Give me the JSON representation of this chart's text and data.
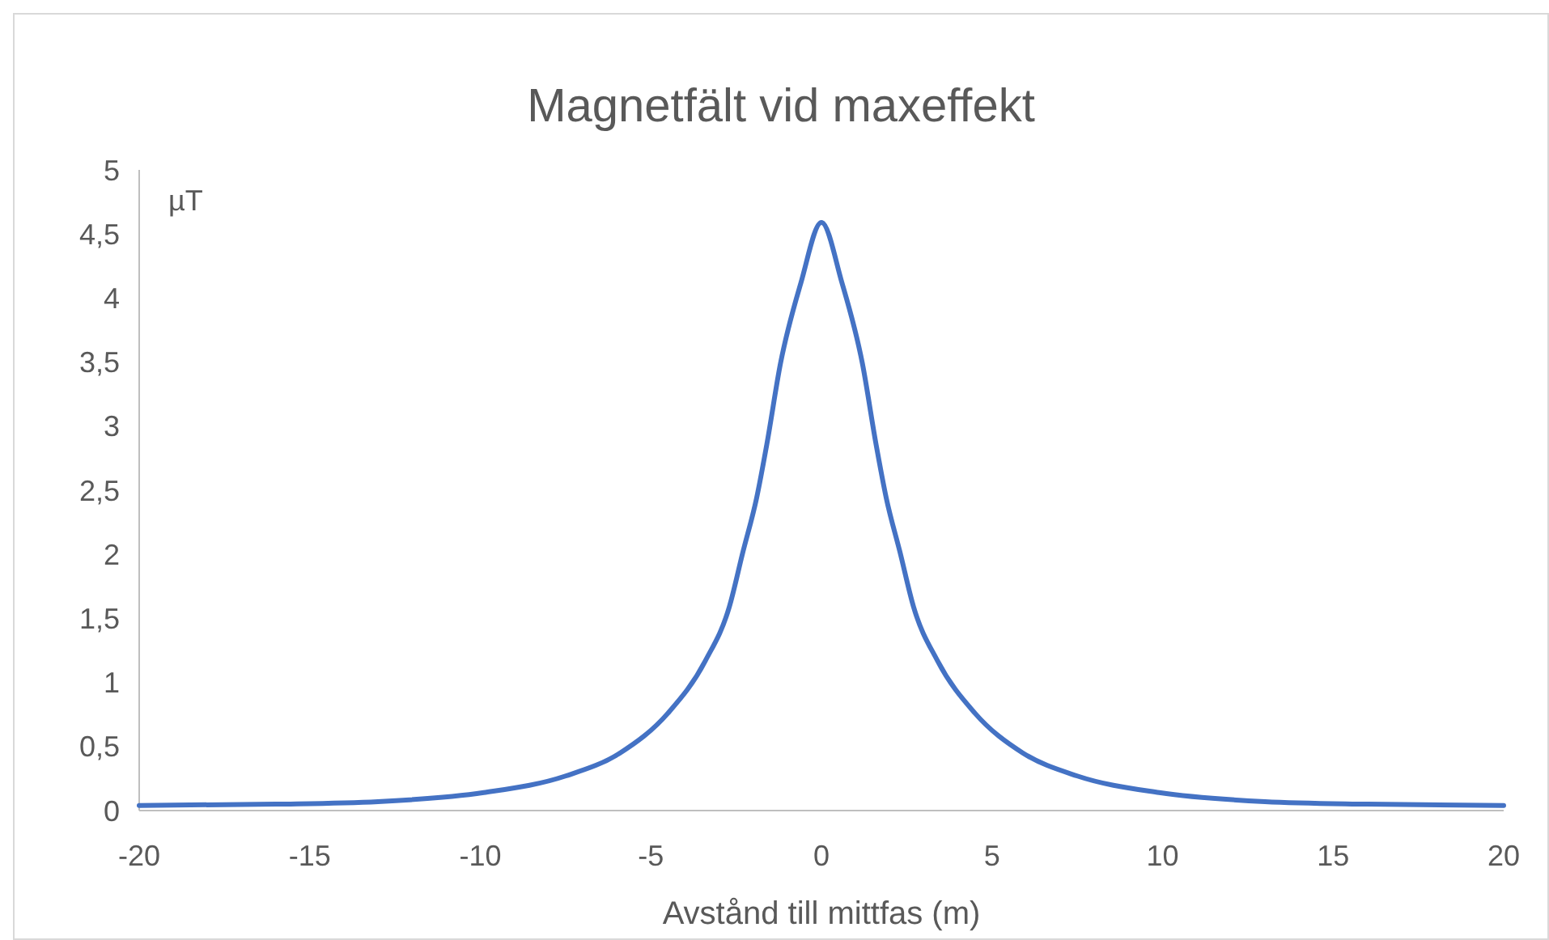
{
  "chart_data": {
    "type": "line",
    "title": "Magnetfält vid maxeffekt",
    "xlabel": "Avstånd till mittfas (m)",
    "ylabel": "µT",
    "x": [
      -20,
      -16,
      -13,
      -9.9,
      -7.5,
      -5.9,
      -4.5,
      -3.4,
      -2.7,
      -2.3,
      -1.9,
      -1.6,
      -1.2,
      -0.6,
      0,
      0.6,
      1.2,
      1.6,
      1.9,
      2.3,
      2.7,
      3.4,
      4.5,
      5.9,
      7.5,
      9.9,
      13,
      16,
      20
    ],
    "series": [
      {
        "color": "#4472c4",
        "values": [
          0.04,
          0.05,
          0.07,
          0.14,
          0.27,
          0.45,
          0.76,
          1.17,
          1.59,
          2.02,
          2.44,
          2.86,
          3.49,
          4.12,
          4.59,
          4.12,
          3.49,
          2.86,
          2.44,
          2.02,
          1.59,
          1.17,
          0.76,
          0.45,
          0.27,
          0.14,
          0.07,
          0.05,
          0.04
        ]
      }
    ],
    "xlim": [
      -20,
      20
    ],
    "xticks": [
      -20,
      -15,
      -10,
      -5,
      0,
      5,
      10,
      15,
      20
    ],
    "ylim": [
      0,
      5
    ],
    "yticks": [
      {
        "value": 0,
        "label": "0"
      },
      {
        "value": 0.5,
        "label": "0,5"
      },
      {
        "value": 1,
        "label": "1"
      },
      {
        "value": 1.5,
        "label": "1,5"
      },
      {
        "value": 2,
        "label": "2"
      },
      {
        "value": 2.5,
        "label": "2,5"
      },
      {
        "value": 3,
        "label": "3"
      },
      {
        "value": 3.5,
        "label": "3,5"
      },
      {
        "value": 4,
        "label": "4"
      },
      {
        "value": 4.5,
        "label": "4,5"
      },
      {
        "value": 5,
        "label": "5"
      }
    ],
    "grid": false,
    "marker": "none",
    "line_style": "solid"
  }
}
